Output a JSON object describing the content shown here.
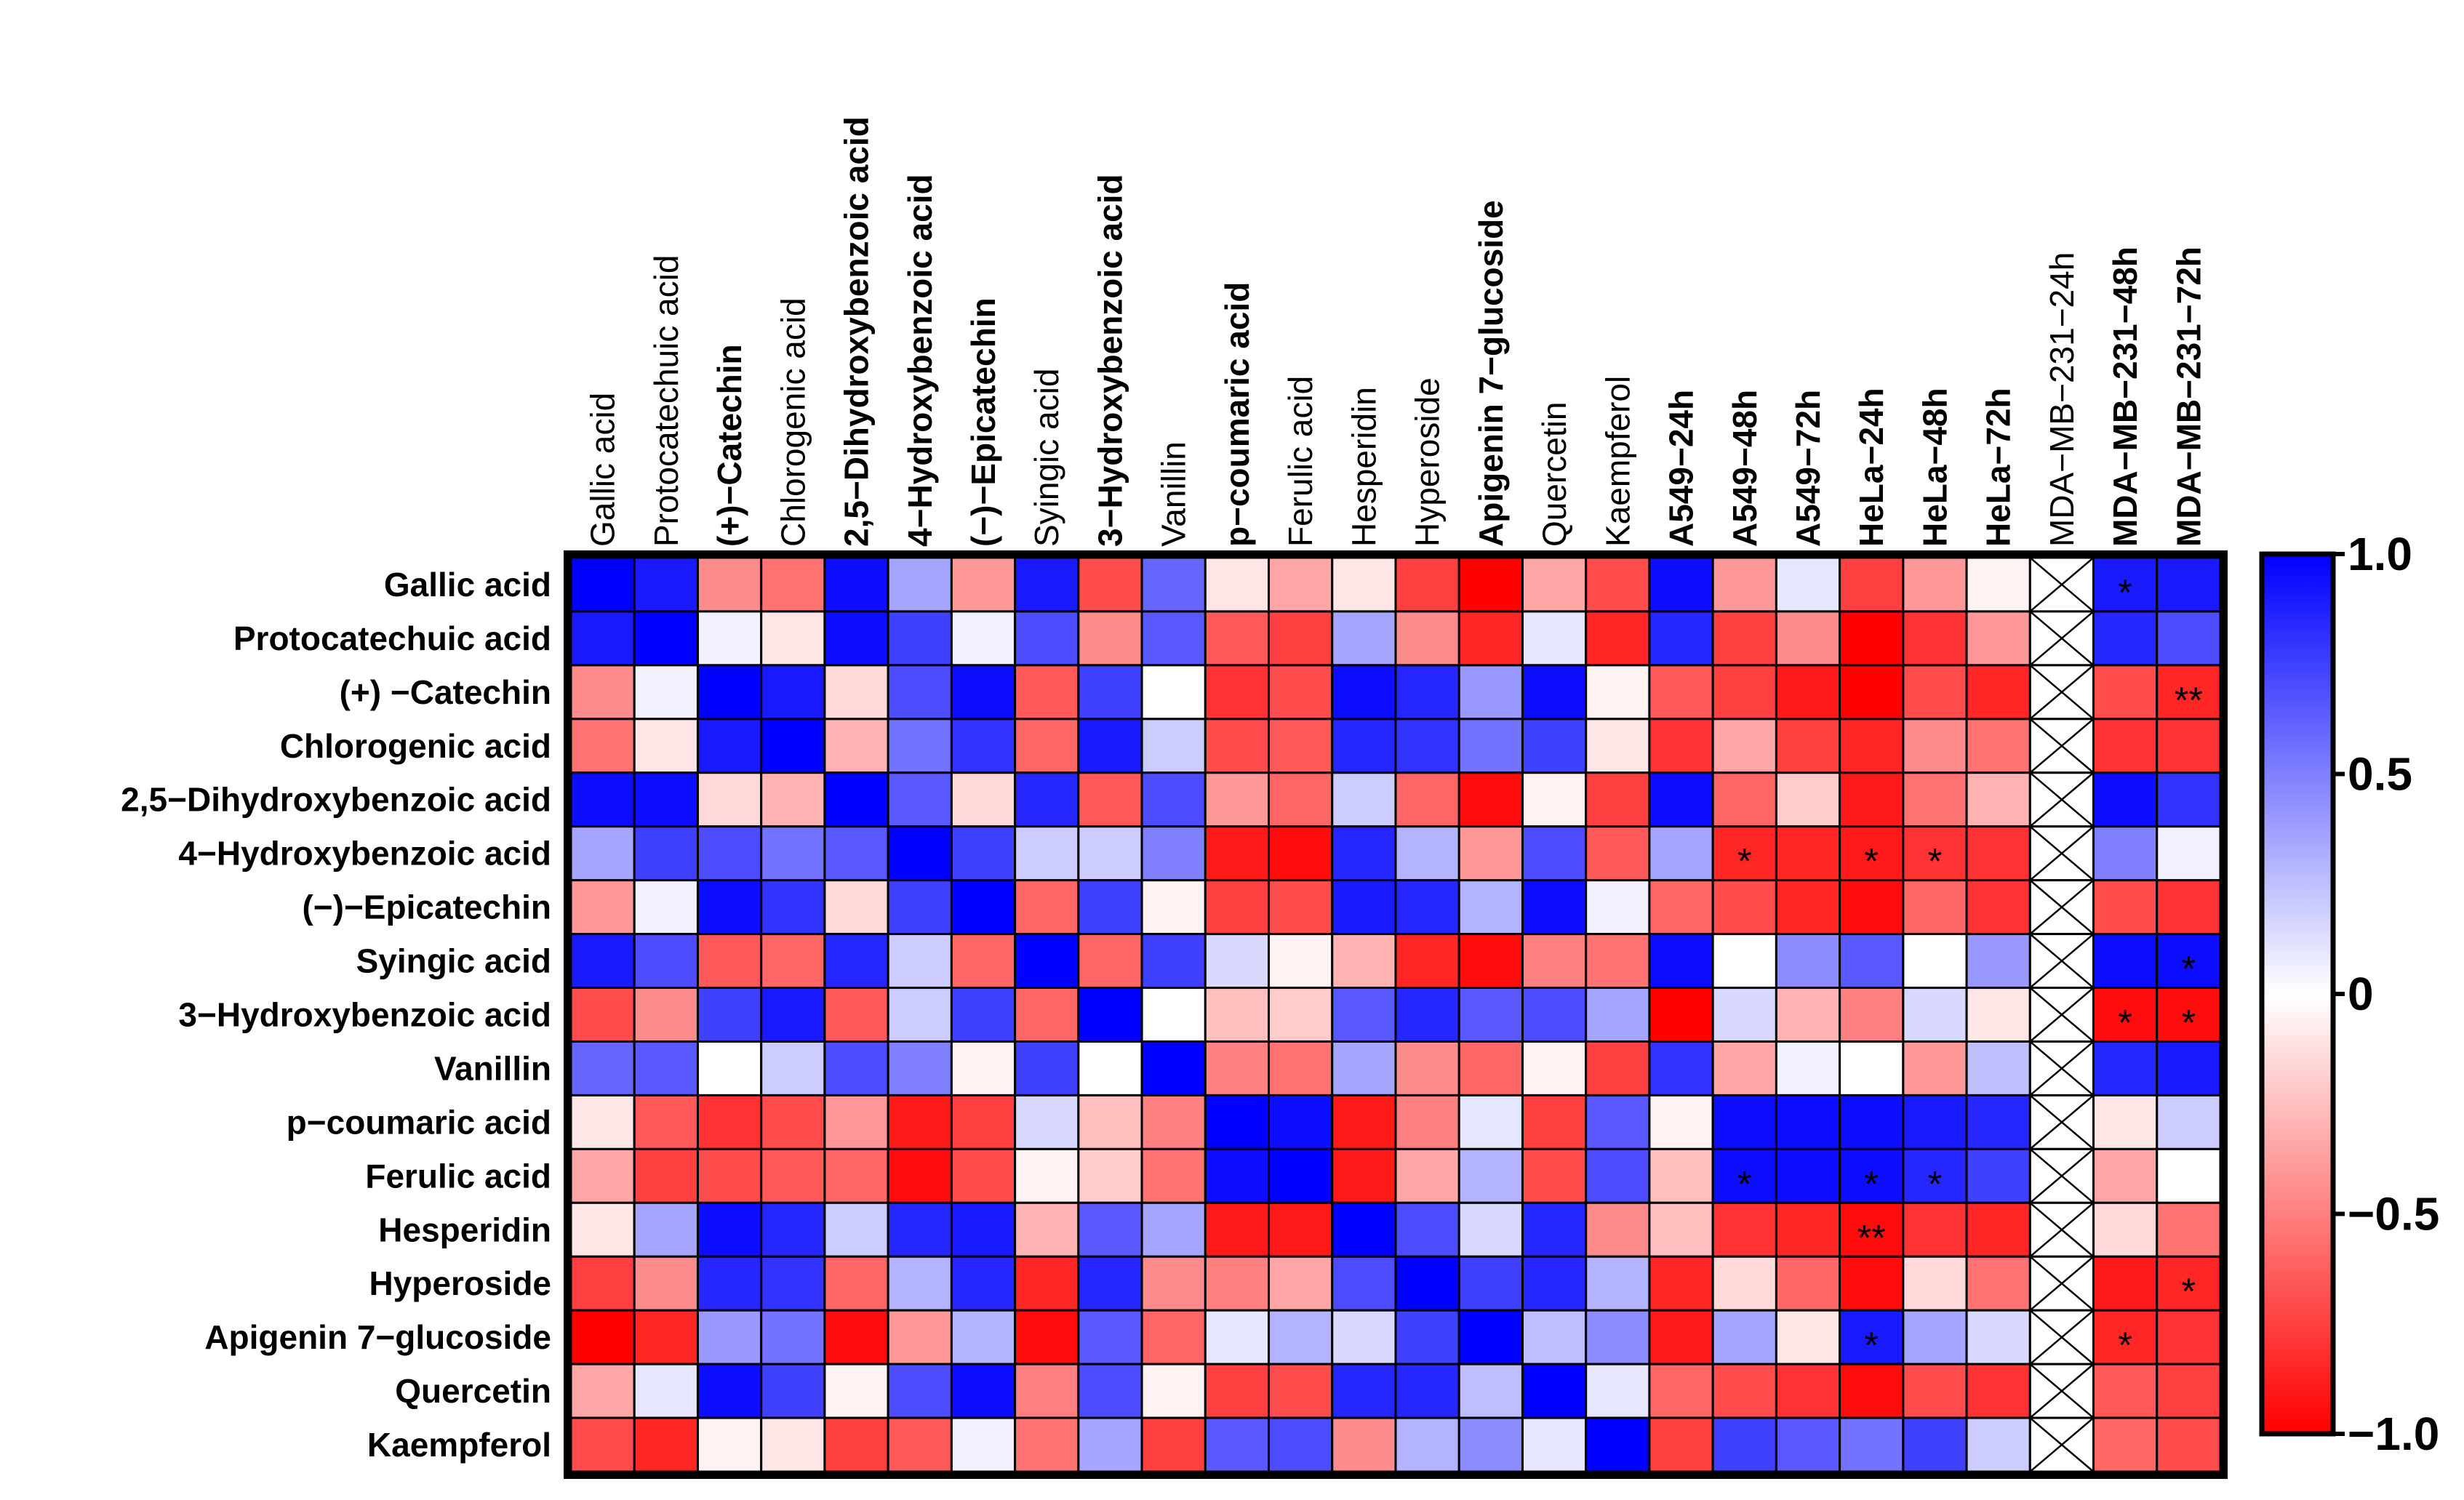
{
  "chart_data": {
    "type": "heatmap",
    "title": "",
    "xlabel": "",
    "ylabel": "",
    "colorscale": {
      "min": -1.0,
      "mid": 0,
      "max": 1.0,
      "low_color": "#ff0000",
      "mid_color": "#ffffff",
      "high_color": "#0000ff"
    },
    "colorbar_ticks": [
      {
        "value": 1.0,
        "label": "1.0"
      },
      {
        "value": 0.5,
        "label": "0.5"
      },
      {
        "value": 0,
        "label": "0"
      },
      {
        "value": -0.5,
        "label": "−0.5"
      },
      {
        "value": -1.0,
        "label": "−1.0"
      }
    ],
    "columns": [
      {
        "label": "Gallic acid",
        "bold": false
      },
      {
        "label": "Protocatechuic acid",
        "bold": false
      },
      {
        "label": "(+)−Catechin",
        "bold": true
      },
      {
        "label": "Chlorogenic acid",
        "bold": false
      },
      {
        "label": "2,5−Dihydroxybenzoic acid",
        "bold": true
      },
      {
        "label": "4−Hydroxybenzoic acid",
        "bold": true
      },
      {
        "label": "(−)−Epicatechin",
        "bold": true
      },
      {
        "label": "Syingic acid",
        "bold": false
      },
      {
        "label": "3−Hydroxybenzoic acid",
        "bold": true
      },
      {
        "label": "Vanillin",
        "bold": false
      },
      {
        "label": "p−coumaric acid",
        "bold": true
      },
      {
        "label": "Ferulic acid",
        "bold": false
      },
      {
        "label": "Hesperidin",
        "bold": false
      },
      {
        "label": "Hyperoside",
        "bold": false
      },
      {
        "label": "Apigenin 7−glucoside",
        "bold": true
      },
      {
        "label": "Quercetin",
        "bold": false
      },
      {
        "label": "Kaempferol",
        "bold": false
      },
      {
        "label": "A549−24h",
        "bold": true
      },
      {
        "label": "A549−48h",
        "bold": true
      },
      {
        "label": "A549−72h",
        "bold": true
      },
      {
        "label": "HeLa−24h",
        "bold": true
      },
      {
        "label": "HeLa−48h",
        "bold": true
      },
      {
        "label": "HeLa−72h",
        "bold": true
      },
      {
        "label": "MDA−MB−231−24h",
        "bold": false
      },
      {
        "label": "MDA−MB−231−48h",
        "bold": true
      },
      {
        "label": "MDA−MB−231−72h",
        "bold": true
      }
    ],
    "rows": [
      {
        "label": "Gallic acid",
        "bold": true
      },
      {
        "label": "Protocatechuic acid",
        "bold": true
      },
      {
        "label": "(+) −Catechin",
        "bold": true
      },
      {
        "label": "Chlorogenic acid",
        "bold": true
      },
      {
        "label": "2,5−Dihydroxybenzoic acid",
        "bold": true
      },
      {
        "label": "4−Hydroxybenzoic acid",
        "bold": true
      },
      {
        "label": "(−)−Epicatechin",
        "bold": true
      },
      {
        "label": "Syingic acid",
        "bold": true
      },
      {
        "label": "3−Hydroxybenzoic acid",
        "bold": true
      },
      {
        "label": "Vanillin",
        "bold": true
      },
      {
        "label": "p−coumaric acid",
        "bold": true
      },
      {
        "label": "Ferulic acid",
        "bold": true
      },
      {
        "label": "Hesperidin",
        "bold": true
      },
      {
        "label": "Hyperoside",
        "bold": true
      },
      {
        "label": "Apigenin 7−glucoside",
        "bold": true
      },
      {
        "label": "Quercetin",
        "bold": true
      },
      {
        "label": "Kaempferol",
        "bold": true
      }
    ],
    "values": [
      [
        1.0,
        0.9,
        -0.45,
        -0.55,
        0.95,
        0.35,
        -0.4,
        0.9,
        -0.7,
        0.6,
        -0.1,
        -0.35,
        -0.1,
        -0.75,
        -1.0,
        -0.35,
        -0.7,
        0.95,
        -0.4,
        0.1,
        -0.75,
        -0.4,
        -0.05,
        null,
        0.9,
        0.9
      ],
      [
        0.9,
        1.0,
        0.05,
        -0.1,
        0.95,
        0.75,
        0.05,
        0.7,
        -0.45,
        0.65,
        -0.65,
        -0.75,
        0.35,
        -0.45,
        -0.85,
        0.1,
        -0.85,
        0.85,
        -0.75,
        -0.45,
        -1.0,
        -0.8,
        -0.4,
        null,
        0.85,
        0.7
      ],
      [
        -0.45,
        0.05,
        1.0,
        0.9,
        -0.15,
        0.7,
        0.95,
        -0.65,
        0.75,
        0.0,
        -0.8,
        -0.7,
        0.95,
        0.85,
        0.4,
        0.95,
        -0.05,
        -0.65,
        -0.75,
        -0.9,
        -1.0,
        -0.7,
        -0.85,
        null,
        -0.7,
        -0.85
      ],
      [
        -0.55,
        -0.1,
        0.9,
        1.0,
        -0.3,
        0.55,
        0.8,
        -0.6,
        0.9,
        0.2,
        -0.7,
        -0.65,
        0.85,
        0.8,
        0.55,
        0.75,
        -0.1,
        -0.8,
        -0.35,
        -0.75,
        -0.85,
        -0.45,
        -0.55,
        null,
        -0.8,
        -0.8
      ],
      [
        0.95,
        0.95,
        -0.15,
        -0.3,
        1.0,
        0.65,
        -0.15,
        0.85,
        -0.65,
        0.7,
        -0.4,
        -0.6,
        0.2,
        -0.6,
        -0.95,
        -0.05,
        -0.75,
        0.95,
        -0.6,
        -0.2,
        -0.9,
        -0.55,
        -0.3,
        null,
        0.95,
        0.8
      ],
      [
        0.35,
        0.75,
        0.7,
        0.55,
        0.65,
        1.0,
        0.75,
        0.2,
        0.2,
        0.5,
        -0.9,
        -0.95,
        0.85,
        0.3,
        -0.4,
        0.7,
        -0.65,
        0.35,
        -0.85,
        -0.85,
        -0.9,
        -0.8,
        -0.8,
        null,
        0.5,
        0.05
      ],
      [
        -0.4,
        0.05,
        0.95,
        0.8,
        -0.15,
        0.75,
        1.0,
        -0.6,
        0.75,
        -0.05,
        -0.75,
        -0.7,
        0.9,
        0.85,
        0.3,
        0.95,
        0.05,
        -0.6,
        -0.7,
        -0.85,
        -0.95,
        -0.6,
        -0.8,
        null,
        -0.7,
        -0.8
      ],
      [
        0.9,
        0.7,
        -0.65,
        -0.6,
        0.85,
        0.2,
        -0.6,
        1.0,
        -0.6,
        0.75,
        0.15,
        -0.05,
        -0.3,
        -0.85,
        -0.95,
        -0.5,
        -0.55,
        0.95,
        0.0,
        0.45,
        0.65,
        0.0,
        0.4,
        null,
        0.95,
        0.95
      ],
      [
        -0.7,
        -0.45,
        0.75,
        0.9,
        -0.65,
        0.2,
        0.75,
        -0.6,
        1.0,
        0.0,
        -0.25,
        -0.2,
        0.65,
        0.85,
        0.65,
        0.7,
        0.35,
        -1.0,
        0.15,
        -0.3,
        -0.5,
        0.15,
        -0.1,
        null,
        -0.95,
        -0.95
      ],
      [
        0.6,
        0.65,
        0.0,
        0.2,
        0.7,
        0.5,
        -0.05,
        0.75,
        0.0,
        1.0,
        -0.5,
        -0.55,
        0.35,
        -0.45,
        -0.6,
        -0.05,
        -0.75,
        0.8,
        -0.35,
        0.05,
        0.0,
        -0.4,
        0.25,
        null,
        0.85,
        0.9
      ],
      [
        -0.1,
        -0.65,
        -0.8,
        -0.7,
        -0.4,
        -0.9,
        -0.75,
        0.15,
        -0.25,
        -0.5,
        1.0,
        0.95,
        -0.9,
        -0.5,
        0.1,
        -0.75,
        0.65,
        -0.05,
        0.95,
        0.95,
        0.95,
        0.9,
        0.85,
        null,
        -0.1,
        0.2
      ],
      [
        -0.35,
        -0.75,
        -0.7,
        -0.65,
        -0.6,
        -0.95,
        -0.7,
        -0.05,
        -0.2,
        -0.55,
        0.95,
        1.0,
        -0.9,
        -0.35,
        0.3,
        -0.7,
        0.7,
        -0.25,
        0.95,
        0.95,
        0.95,
        0.85,
        0.75,
        null,
        -0.35,
        0.0
      ],
      [
        -0.1,
        0.35,
        0.95,
        0.85,
        0.2,
        0.85,
        0.9,
        -0.3,
        0.65,
        0.35,
        -0.9,
        -0.9,
        1.0,
        0.7,
        0.15,
        0.85,
        -0.45,
        -0.25,
        -0.8,
        -0.85,
        -0.95,
        -0.8,
        -0.85,
        null,
        -0.15,
        -0.55
      ],
      [
        -0.75,
        -0.45,
        0.85,
        0.8,
        -0.6,
        0.3,
        0.85,
        -0.85,
        0.85,
        -0.45,
        -0.5,
        -0.35,
        0.7,
        1.0,
        0.75,
        0.85,
        0.3,
        -0.85,
        -0.15,
        -0.6,
        -0.95,
        -0.15,
        -0.55,
        null,
        -0.9,
        -0.85
      ],
      [
        -1.0,
        -0.85,
        0.4,
        0.55,
        -0.95,
        -0.4,
        0.3,
        -0.95,
        0.65,
        -0.6,
        0.1,
        0.3,
        0.15,
        0.75,
        1.0,
        0.25,
        0.45,
        -0.9,
        0.35,
        -0.1,
        0.9,
        0.35,
        0.15,
        null,
        -0.85,
        -0.8
      ],
      [
        -0.35,
        0.1,
        0.95,
        0.75,
        -0.05,
        0.7,
        0.95,
        -0.5,
        0.7,
        -0.05,
        -0.75,
        -0.7,
        0.85,
        0.85,
        0.25,
        1.0,
        0.1,
        -0.6,
        -0.7,
        -0.8,
        -0.95,
        -0.7,
        -0.8,
        null,
        -0.65,
        -0.75
      ],
      [
        -0.7,
        -0.85,
        -0.05,
        -0.1,
        -0.75,
        -0.65,
        0.05,
        -0.55,
        0.35,
        -0.75,
        0.65,
        0.7,
        -0.45,
        0.3,
        0.45,
        0.1,
        1.0,
        -0.75,
        0.75,
        0.65,
        0.55,
        0.75,
        0.2,
        null,
        -0.6,
        -0.7
      ]
    ],
    "significance": [
      {
        "row": 0,
        "col": 24,
        "mark": "*"
      },
      {
        "row": 2,
        "col": 25,
        "mark": "**"
      },
      {
        "row": 5,
        "col": 18,
        "mark": "*"
      },
      {
        "row": 5,
        "col": 20,
        "mark": "*"
      },
      {
        "row": 5,
        "col": 21,
        "mark": "*"
      },
      {
        "row": 7,
        "col": 25,
        "mark": "*"
      },
      {
        "row": 8,
        "col": 24,
        "mark": "*"
      },
      {
        "row": 8,
        "col": 25,
        "mark": "*"
      },
      {
        "row": 11,
        "col": 18,
        "mark": "*"
      },
      {
        "row": 11,
        "col": 20,
        "mark": "*"
      },
      {
        "row": 11,
        "col": 21,
        "mark": "*"
      },
      {
        "row": 12,
        "col": 20,
        "mark": "**"
      },
      {
        "row": 13,
        "col": 25,
        "mark": "*"
      },
      {
        "row": 14,
        "col": 20,
        "mark": "*"
      },
      {
        "row": 14,
        "col": 24,
        "mark": "*"
      }
    ],
    "missing_column": "MDA−MB−231−24h",
    "missing_marker": "crossed-box"
  }
}
